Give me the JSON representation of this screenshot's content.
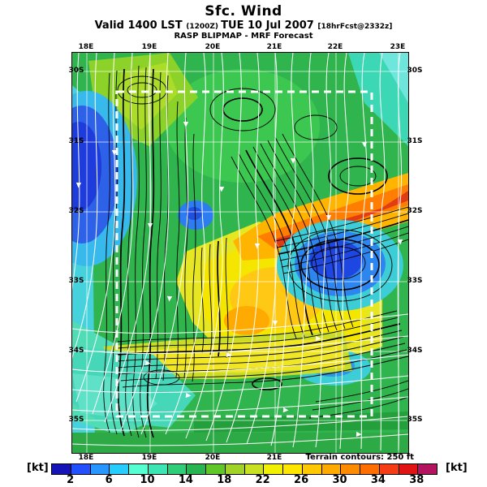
{
  "header": {
    "title": "Sfc. Wind",
    "valid_prefix": "Valid 1400 LST ",
    "valid_small1": "(1200Z) ",
    "valid_date": "TUE 10 Jul 2007 ",
    "valid_small2": "[18hrFcst@2332z]",
    "model_line": "RASP BLIPMAP - MRF Forecast"
  },
  "map": {
    "top_lon_labels": [
      "18E",
      "19E",
      "20E",
      "21E",
      "22E",
      "23E"
    ],
    "bottom_lon_labels": [
      "18E",
      "19E",
      "20E",
      "21E"
    ],
    "left_lat_labels": [
      "30S",
      "31S",
      "32S",
      "33S",
      "34S",
      "35S"
    ],
    "right_lat_labels": [
      "30S",
      "31S",
      "32S",
      "33S",
      "34S",
      "35S"
    ],
    "terrain_note": "Terrain contours: 250 ft"
  },
  "colorbar": {
    "unit_left": "[kt]",
    "unit_right": "[kt]",
    "tick_labels": [
      "2",
      "6",
      "10",
      "14",
      "18",
      "22",
      "26",
      "30",
      "34",
      "38"
    ],
    "segment_colors": [
      "#1414b9",
      "#2350ff",
      "#2896ff",
      "#28cdff",
      "#55ffd2",
      "#3ce6b4",
      "#2ecd78",
      "#28b450",
      "#5fc828",
      "#a0d228",
      "#c8e123",
      "#f0f000",
      "#ffe600",
      "#ffc800",
      "#ffaa00",
      "#ff8c00",
      "#ff6e00",
      "#f53c14",
      "#e11414",
      "#b4145f"
    ]
  }
}
